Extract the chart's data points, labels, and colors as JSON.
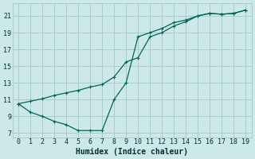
{
  "xlabel": "Humidex (Indice chaleur)",
  "bg_color": "#cce8e8",
  "grid_color": "#aacccc",
  "line_color": "#006655",
  "x_wiggly": [
    0,
    1,
    2,
    3,
    4,
    5,
    6,
    7,
    8,
    9,
    10,
    11,
    12,
    13,
    14,
    15,
    16,
    17,
    18,
    19
  ],
  "y_wiggly": [
    10.5,
    9.5,
    9.0,
    8.4,
    8.0,
    7.3,
    7.3,
    7.3,
    11.0,
    13.0,
    18.5,
    19.0,
    19.5,
    20.2,
    20.5,
    21.0,
    21.3,
    21.2,
    21.3,
    21.7
  ],
  "x_diag": [
    0,
    1,
    2,
    3,
    4,
    5,
    6,
    7,
    8,
    9,
    10,
    11,
    12,
    13,
    14,
    15,
    16,
    17,
    18,
    19
  ],
  "y_diag": [
    10.5,
    10.8,
    11.1,
    11.5,
    11.8,
    12.1,
    12.5,
    12.8,
    13.7,
    15.5,
    16.0,
    18.5,
    19.0,
    19.8,
    20.3,
    21.0,
    21.3,
    21.2,
    21.3,
    21.7
  ],
  "xlim": [
    -0.5,
    19.5
  ],
  "ylim": [
    6.5,
    22.5
  ],
  "xticks": [
    0,
    1,
    2,
    3,
    4,
    5,
    6,
    7,
    8,
    9,
    10,
    11,
    12,
    13,
    14,
    15,
    16,
    17,
    18,
    19
  ],
  "yticks": [
    7,
    9,
    11,
    13,
    15,
    17,
    19,
    21
  ],
  "tick_fontsize": 6,
  "xlabel_fontsize": 7
}
